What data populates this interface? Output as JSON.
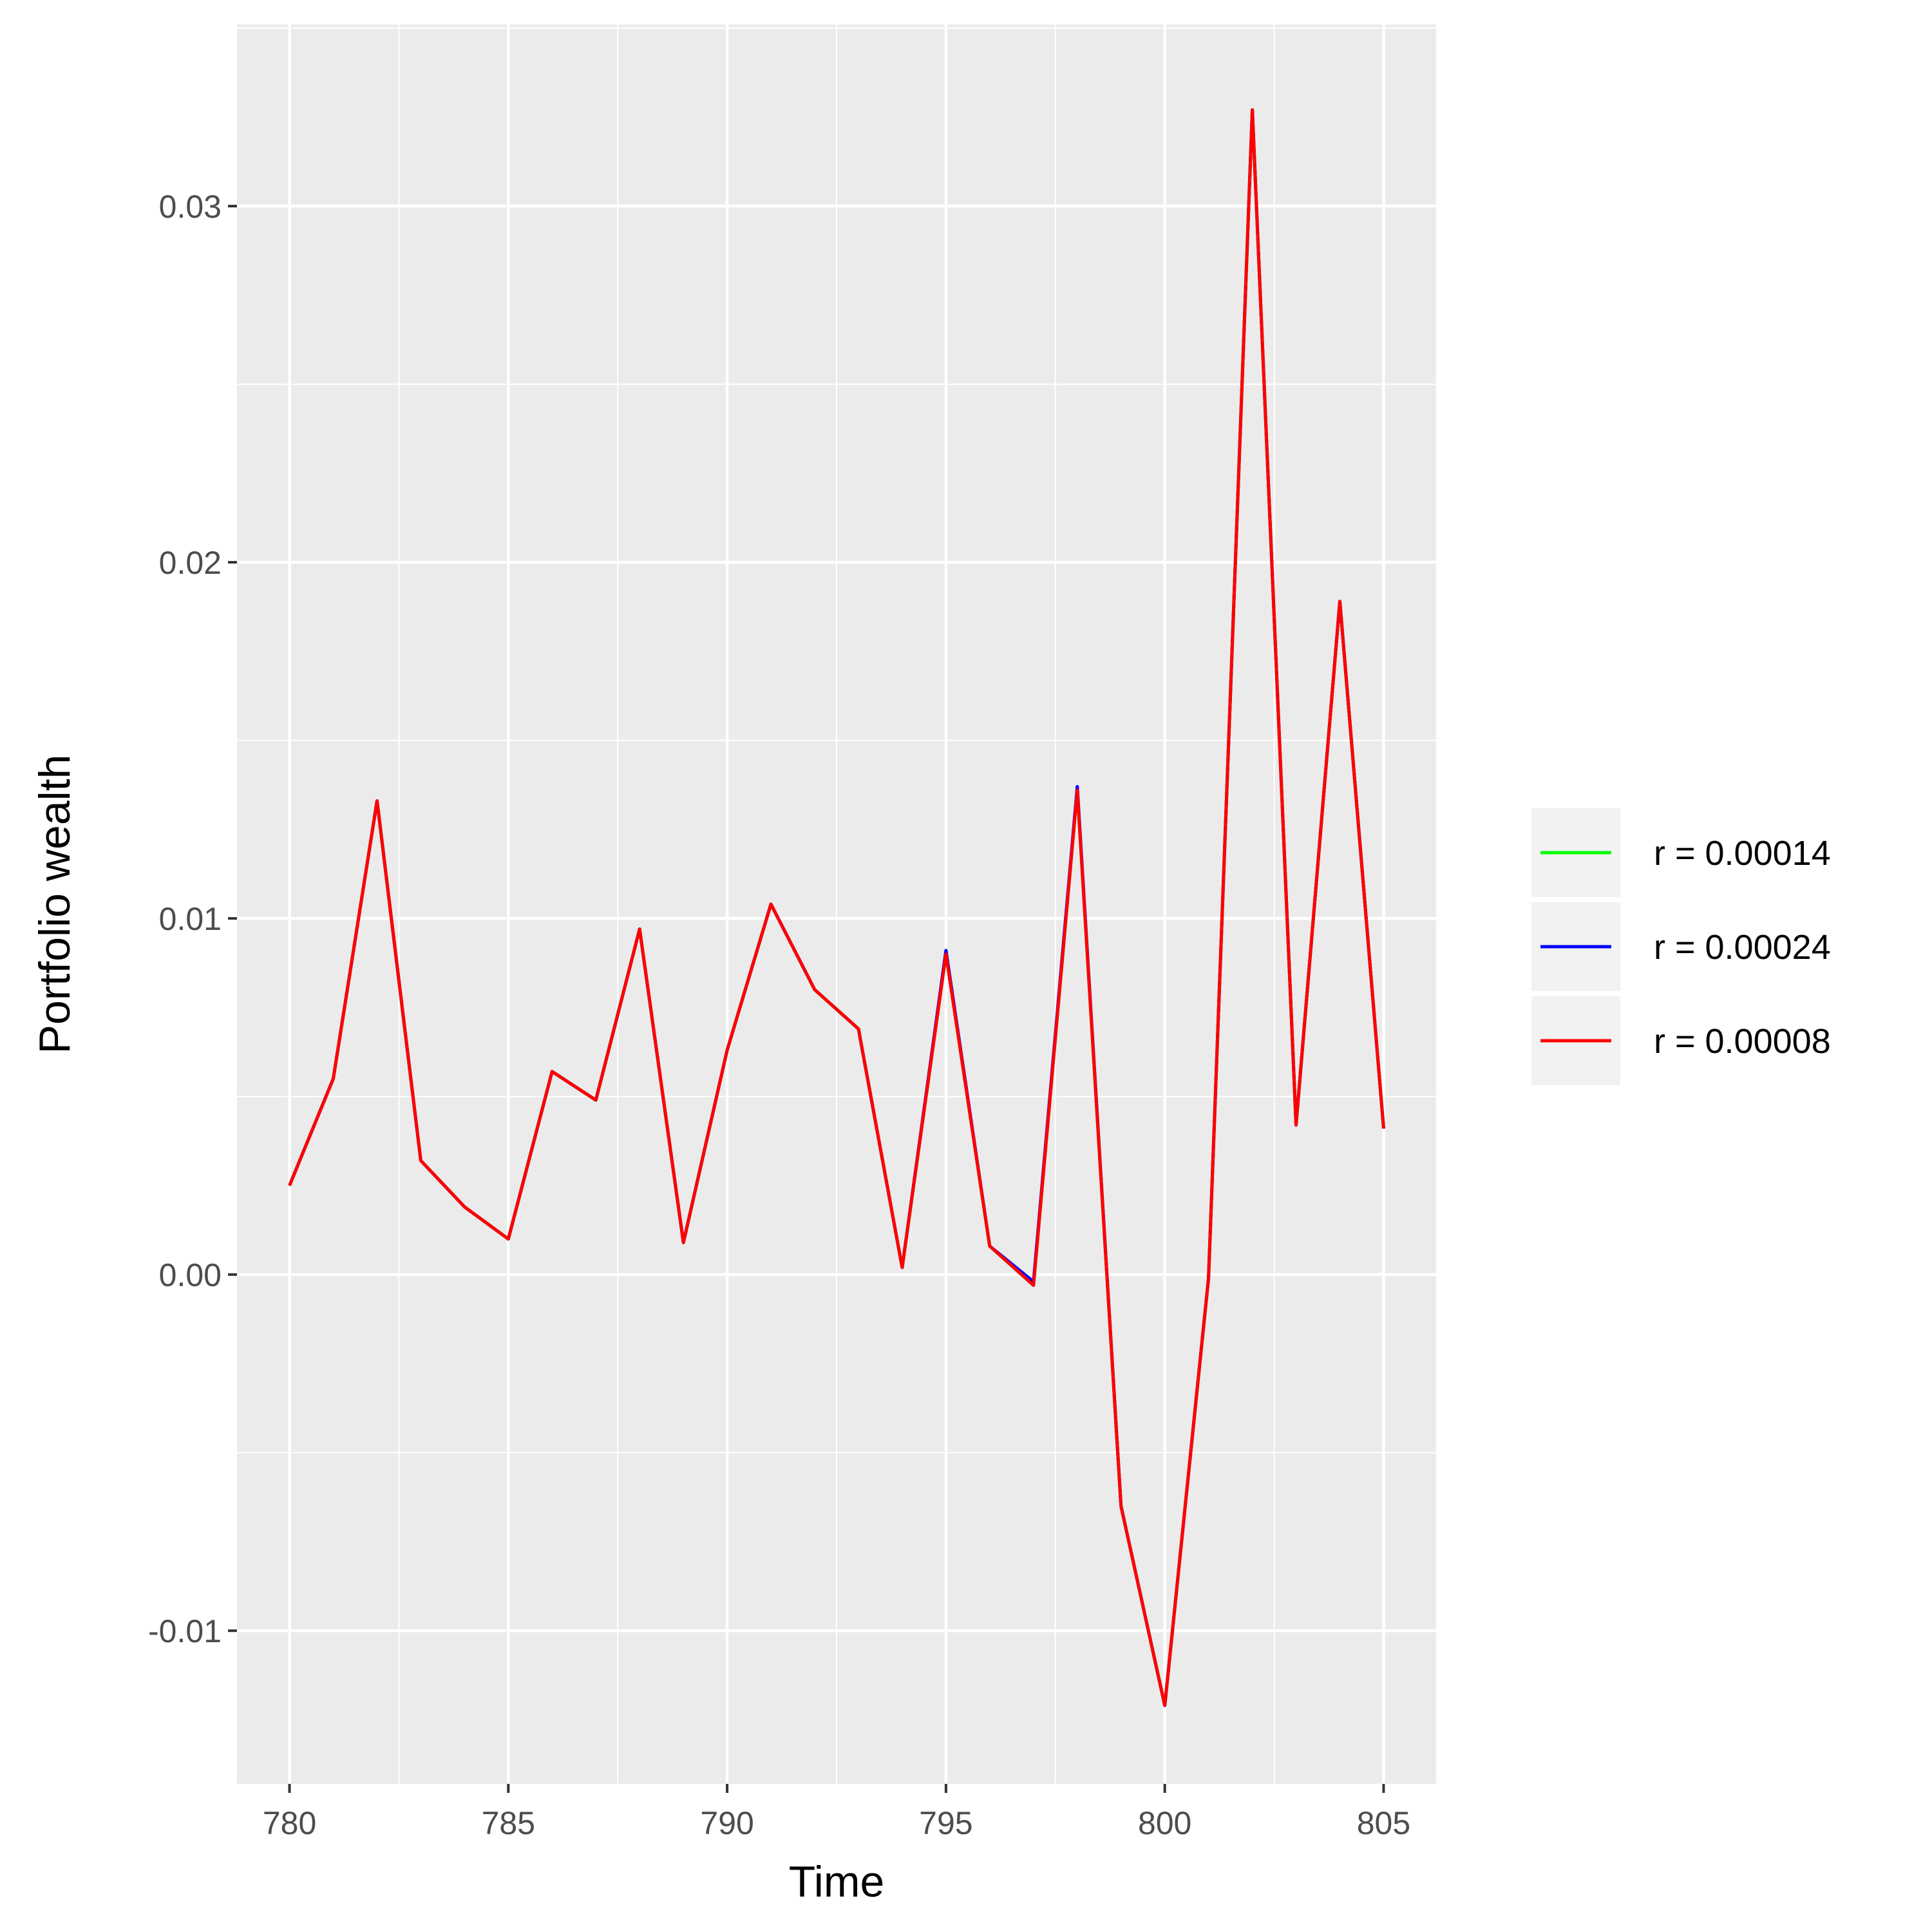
{
  "chart_data": {
    "type": "line",
    "title": "",
    "xlabel": "Time",
    "ylabel": "Portfolio wealth",
    "xlim": [
      778.8,
      806.2
    ],
    "ylim": [
      -0.0143,
      0.0351
    ],
    "x_ticks": [
      780,
      785,
      790,
      795,
      800,
      805
    ],
    "y_ticks": [
      -0.01,
      0.0,
      0.01,
      0.02,
      0.03
    ],
    "x_tick_labels": [
      "780",
      "785",
      "790",
      "795",
      "800",
      "805"
    ],
    "y_tick_labels": [
      "-0.01",
      "0.00",
      "0.01",
      "0.02",
      "0.03"
    ],
    "grid": true,
    "legend_position": "right",
    "x": [
      780,
      781,
      782,
      783,
      784,
      785,
      786,
      787,
      788,
      789,
      790,
      791,
      792,
      793,
      794,
      795,
      796,
      797,
      798,
      799,
      800,
      801,
      802,
      803,
      804,
      805
    ],
    "series": [
      {
        "name": "r = 0.00014",
        "color": "#00ff00",
        "values": [
          0.0025,
          0.0055,
          0.0133,
          0.0032,
          0.0019,
          0.001,
          0.0057,
          0.0049,
          0.0097,
          0.0009,
          0.0063,
          0.0104,
          0.008,
          0.0069,
          0.0002,
          0.009,
          0.0008,
          -0.0003,
          0.0136,
          -0.0065,
          -0.0121,
          -0.0001,
          0.0327,
          0.0042,
          0.0189,
          0.0041
        ]
      },
      {
        "name": "r = 0.00024",
        "color": "#0000ff",
        "values": [
          0.0025,
          0.0055,
          0.0133,
          0.0032,
          0.0019,
          0.001,
          0.0057,
          0.0049,
          0.0097,
          0.0009,
          0.0063,
          0.0104,
          0.008,
          0.0069,
          0.0002,
          0.0091,
          0.0008,
          -0.0002,
          0.0137,
          -0.0065,
          -0.0121,
          -0.0001,
          0.0327,
          0.0042,
          0.0189,
          0.0041
        ]
      },
      {
        "name": "r = 0.00008",
        "color": "#ff0000",
        "values": [
          0.0025,
          0.0055,
          0.0133,
          0.0032,
          0.0019,
          0.001,
          0.0057,
          0.0049,
          0.0097,
          0.0009,
          0.0063,
          0.0104,
          0.008,
          0.0069,
          0.0002,
          0.009,
          0.0008,
          -0.0003,
          0.0136,
          -0.0065,
          -0.0121,
          -0.0001,
          0.0327,
          0.0042,
          0.0189,
          0.0041
        ]
      }
    ]
  }
}
